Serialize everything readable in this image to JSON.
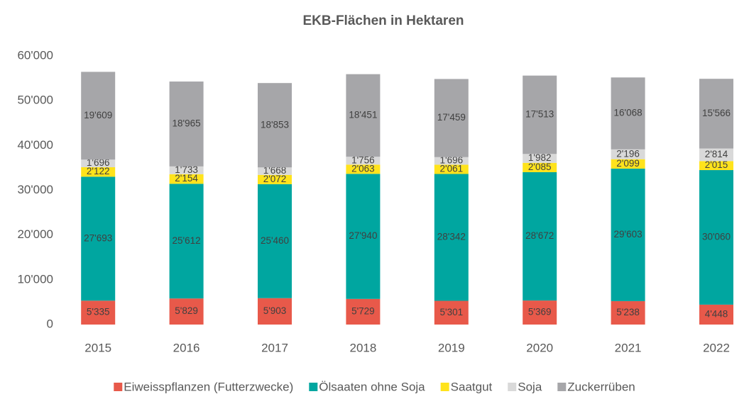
{
  "chart_data": {
    "type": "stacked_bar",
    "title": "EKB-Flächen in Hektaren",
    "categories": [
      "2015",
      "2016",
      "2017",
      "2018",
      "2019",
      "2020",
      "2021",
      "2022"
    ],
    "series": [
      {
        "name": "Eiweisspflanzen (Futterzwecke)",
        "color": "#e8594a",
        "values": [
          5335,
          5829,
          5903,
          5729,
          5301,
          5369,
          5238,
          4448
        ],
        "value_labels": [
          "5'335",
          "5'829",
          "5'903",
          "5'729",
          "5'301",
          "5'369",
          "5'238",
          "4'448"
        ]
      },
      {
        "name": "Ölsaaten ohne Soja",
        "color": "#00a6a0",
        "values": [
          27693,
          25612,
          25460,
          27940,
          28342,
          28672,
          29603,
          30060
        ],
        "value_labels": [
          "27'693",
          "25'612",
          "25'460",
          "27'940",
          "28'342",
          "28'672",
          "29'603",
          "30'060"
        ]
      },
      {
        "name": "Saatgut",
        "color": "#ffe31c",
        "values": [
          2122,
          2154,
          2072,
          2063,
          2061,
          2085,
          2099,
          2015
        ],
        "value_labels": [
          "2'122",
          "2'154",
          "2'072",
          "2'063",
          "2'061",
          "2'085",
          "2'099",
          "2'015"
        ]
      },
      {
        "name": "Soja",
        "color": "#d9d9d9",
        "values": [
          1696,
          1733,
          1668,
          1756,
          1696,
          1982,
          2196,
          2814
        ],
        "value_labels": [
          "1'696",
          "1'733",
          "1'668",
          "1'756",
          "1'696",
          "1'982",
          "2'196",
          "2'814"
        ]
      },
      {
        "name": "Zuckerrüben",
        "color": "#a6a6a9",
        "values": [
          19609,
          18965,
          18853,
          18451,
          17459,
          17513,
          16068,
          15566
        ],
        "value_labels": [
          "19'609",
          "18'965",
          "18'853",
          "18'451",
          "17'459",
          "17'513",
          "16'068",
          "15'566"
        ]
      }
    ],
    "ylim": [
      0,
      60000
    ],
    "yticks": [
      0,
      {
        "value": 10000,
        "label": "10'000"
      },
      {
        "value": 20000,
        "label": "20'000"
      },
      {
        "value": 30000,
        "label": "30'000"
      },
      {
        "value": 40000,
        "label": "40'000"
      },
      {
        "value": 50000,
        "label": "50'000"
      },
      {
        "value": 60000,
        "label": "60'000"
      }
    ],
    "legend": "bottom",
    "grid": false
  }
}
